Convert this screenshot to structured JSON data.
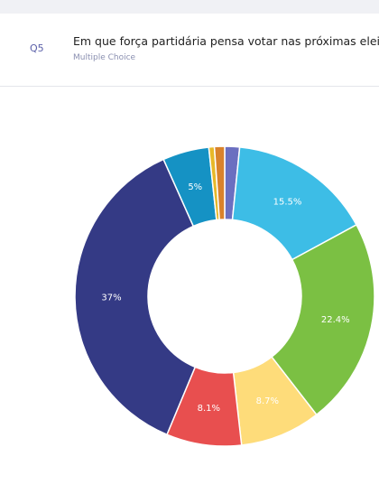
{
  "header": {
    "number": "Q5",
    "question": "Em que força partidária pensa votar nas próximas eleições?",
    "kind": "Multiple Choice"
  },
  "chart_data": {
    "type": "donut",
    "values": [
      1.6,
      15.5,
      22.4,
      8.7,
      8.1,
      37,
      5,
      0.6,
      1.1
    ],
    "value_labels": [
      null,
      "15.5%",
      "22.4%",
      "8.7%",
      "8.1%",
      "37%",
      "5%",
      null,
      null
    ],
    "colors": [
      "#6b6fc0",
      "#3dbde6",
      "#7bc043",
      "#fedc7a",
      "#e84f4f",
      "#343a85",
      "#1592c4",
      "#e7b829",
      "#d9822b"
    ]
  }
}
